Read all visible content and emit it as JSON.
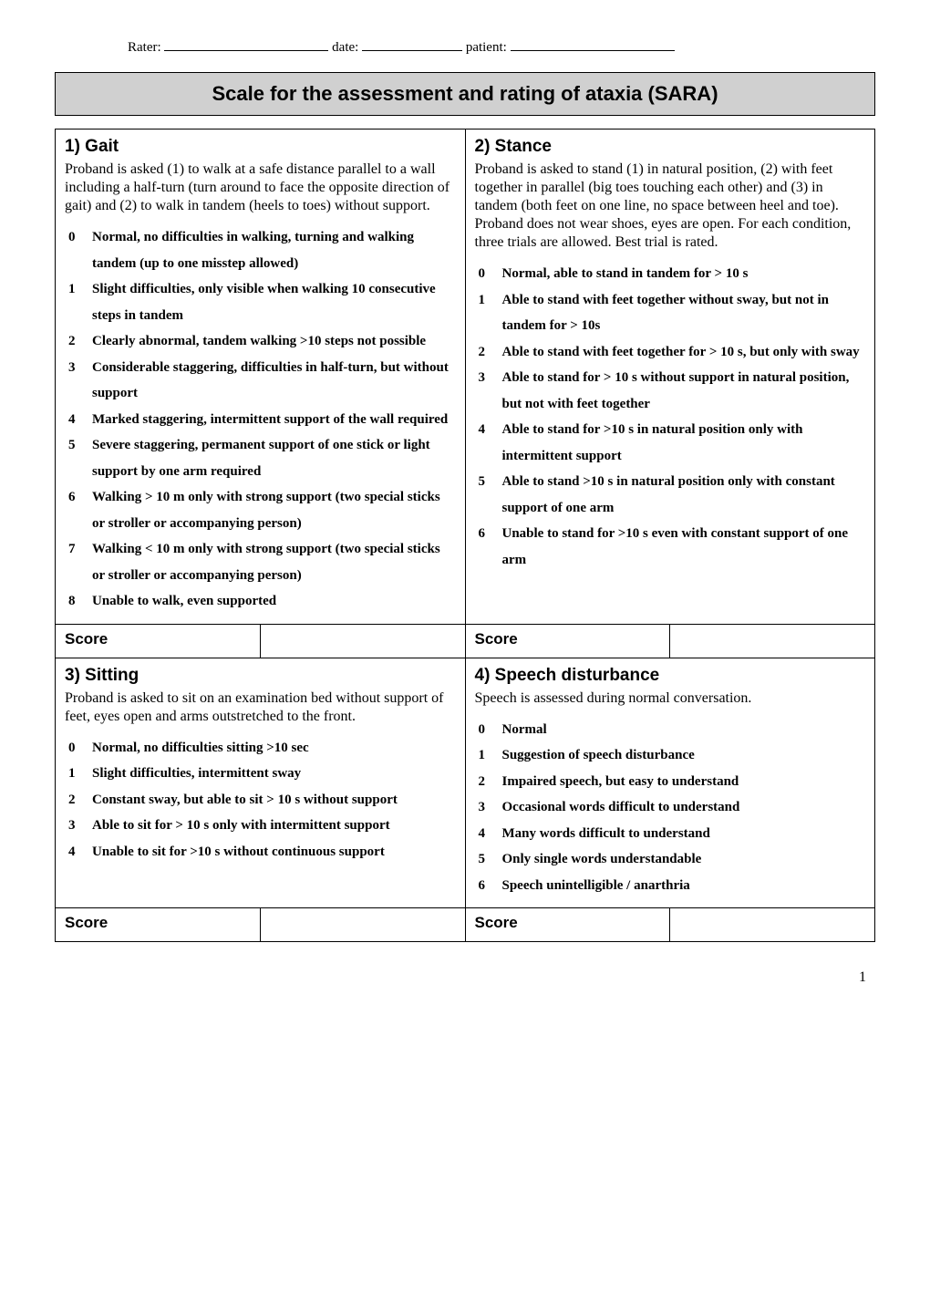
{
  "header": {
    "rater_label": "Rater:",
    "date_label": "date:",
    "patient_label": "patient:"
  },
  "title": "Scale for the assessment and rating of ataxia (SARA)",
  "sections": {
    "gait": {
      "heading": "1) Gait",
      "intro": "Proband is asked (1) to walk at a safe distance parallel to a wall including a half-turn (turn around to face the opposite direction of gait) and (2) to walk in tandem (heels to toes) without support.",
      "items": [
        "Normal, no difficulties in walking, turning and walking tandem (up to one misstep allowed)",
        "Slight difficulties, only visible when walking 10 consecutive steps in tandem",
        "Clearly abnormal, tandem walking >10 steps not possible",
        "Considerable staggering, difficulties in half-turn, but without support",
        "Marked staggering, intermittent support of the wall required",
        "Severe staggering, permanent support of one stick or light support by one arm required",
        "Walking > 10 m only with strong support (two special sticks or stroller or accompanying person)",
        "Walking < 10 m only with strong support (two special sticks or stroller or accompanying person)",
        "Unable to walk, even supported"
      ]
    },
    "stance": {
      "heading": "2) Stance",
      "intro": "Proband is asked to stand (1) in natural position, (2) with feet together in parallel (big toes touching each other) and (3) in tandem (both feet on one line, no space between heel and toe). Proband does not wear shoes, eyes are open. For each condition, three trials are allowed. Best trial is rated.",
      "items": [
        "Normal, able to stand in tandem for > 10 s",
        "Able to stand with feet together without sway, but not in tandem for > 10s",
        "Able to stand with feet together for > 10 s, but only with sway",
        "Able to stand for > 10 s without support in natural position, but not with feet together",
        "Able to stand for >10 s in natural position only with intermittent support",
        "Able to stand >10 s in natural position only with constant support of one arm",
        "Unable to stand for >10 s even with constant support of one arm"
      ]
    },
    "sitting": {
      "heading": "3) Sitting",
      "intro": "Proband is asked to sit on an examination bed without support of feet, eyes open and arms outstretched to the front.",
      "items": [
        "Normal, no difficulties sitting >10 sec",
        "Slight difficulties, intermittent sway",
        "Constant sway, but able to sit > 10 s without support",
        "Able to sit for > 10 s only with intermittent support",
        "Unable to sit for >10 s without continuous support"
      ]
    },
    "speech": {
      "heading": "4) Speech disturbance",
      "intro": "Speech is assessed during normal conversation.",
      "items": [
        "Normal",
        "Suggestion of speech disturbance",
        "Impaired speech, but easy to understand",
        "Occasional words difficult to understand",
        "Many words difficult to understand",
        "Only single words understandable",
        "Speech unintelligible / anarthria"
      ]
    }
  },
  "score_label": "Score",
  "page_number": "1"
}
